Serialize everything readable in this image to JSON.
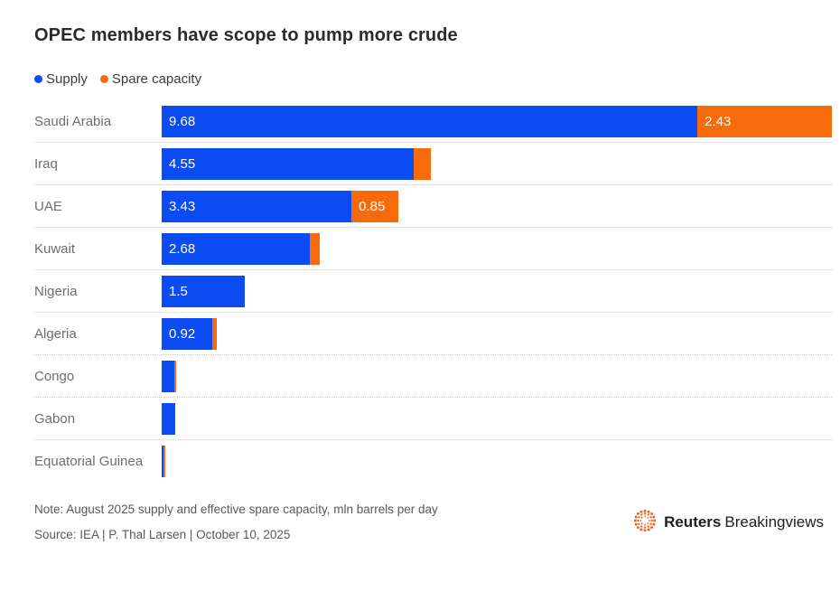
{
  "title": "OPEC members have scope to pump more crude",
  "legend": {
    "supply": {
      "label": "Supply",
      "color": "#0B4BF2"
    },
    "spare": {
      "label": "Spare capacity",
      "color": "#F76B0B"
    }
  },
  "chart_data": {
    "type": "bar",
    "orientation": "horizontal",
    "stacked": true,
    "title": "OPEC members have scope to pump more crude",
    "unit": "mln barrels per day",
    "xmax": 12.11,
    "grid": false,
    "legend_position": "top",
    "categories": [
      "Saudi Arabia",
      "Iraq",
      "UAE",
      "Kuwait",
      "Nigeria",
      "Algeria",
      "Congo",
      "Gabon",
      "Equatorial Guinea"
    ],
    "series": [
      {
        "name": "Supply",
        "color": "#0B4BF2",
        "values": [
          9.68,
          4.55,
          3.43,
          2.68,
          1.5,
          0.92,
          0.23,
          0.24,
          0.03
        ]
      },
      {
        "name": "Spare capacity",
        "color": "#F76B0B",
        "values": [
          2.43,
          0.31,
          0.85,
          0.18,
          0,
          0.08,
          0.03,
          0,
          0.04
        ]
      }
    ],
    "data_labels": {
      "supply": [
        "9.68",
        "4.55",
        "3.43",
        "2.68",
        "1.5",
        "0.92",
        "",
        "",
        ""
      ],
      "spare": [
        "2.43",
        "",
        "0.85",
        "",
        "",
        "",
        "",
        "",
        ""
      ]
    }
  },
  "footer": {
    "note": "Note: August 2025 supply and effective spare capacity, mln barrels per day",
    "source": "Source: IEA | P. Thal Larsen | October 10, 2025",
    "brand_bold": "Reuters",
    "brand_regular": "Breakingviews",
    "brand_dot_color": "#F25C19"
  }
}
